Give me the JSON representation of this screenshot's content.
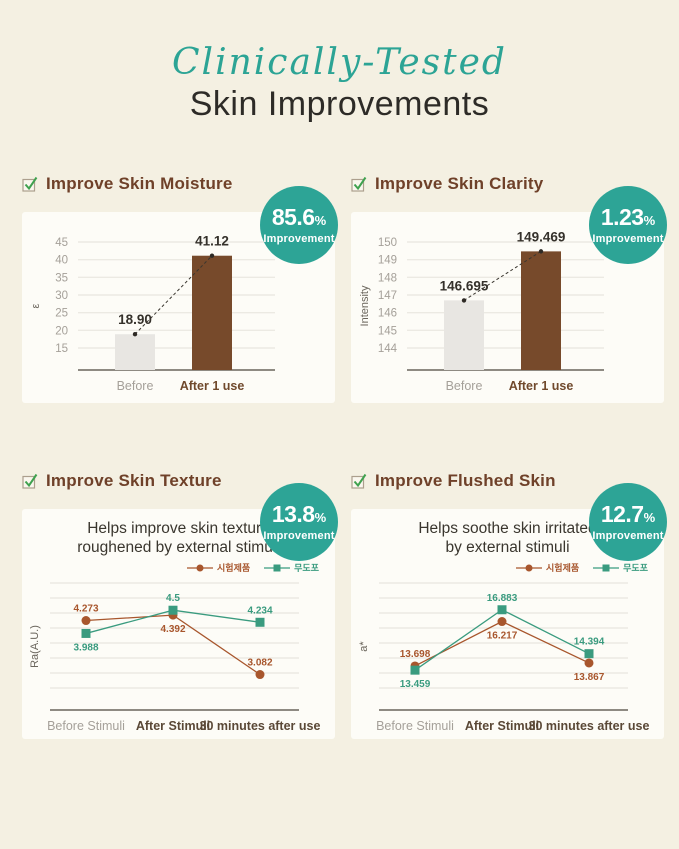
{
  "header": {
    "script_title": "Clinically-Tested",
    "main_title": "Skin Improvements"
  },
  "palette": {
    "teal_accent": "#2da496",
    "rust_series": "#a8562d",
    "teal_series": "#3a9b7f",
    "bar_before_gray": "#e8e6e2",
    "bar_after_brown": "#774a2b",
    "check_green": "#3fa14f",
    "heading_brown": "#6f4129",
    "background_cream": "#f4f0e2"
  },
  "sections": [
    {
      "heading": "Improve Skin Moisture",
      "badge_value": "85.6",
      "badge_percent": "%",
      "badge_label": "Improvement"
    },
    {
      "heading": "Improve Skin Clarity",
      "badge_value": "1.23",
      "badge_percent": "%",
      "badge_label": "Improvement"
    },
    {
      "heading": "Improve Skin Texture",
      "badge_value": "13.8",
      "badge_percent": "%",
      "badge_label": "Improvement"
    },
    {
      "heading": "Improve Flushed Skin",
      "badge_value": "12.7",
      "badge_percent": "%",
      "badge_label": "Improvement"
    }
  ],
  "chart_data": [
    {
      "type": "bar",
      "section": "Improve Skin Moisture",
      "improvement": "85.6% Improvement",
      "ylabel": "ε",
      "yticks": [
        45,
        40,
        35,
        30,
        25,
        20,
        15
      ],
      "categories": [
        "Before",
        "After 1 use"
      ],
      "values": [
        18.9,
        41.12
      ],
      "value_labels": [
        "18.90",
        "41.12"
      ],
      "bar_colors": [
        "#e8e6e2",
        "#774a2b"
      ],
      "grid": true,
      "connector": true
    },
    {
      "type": "bar",
      "section": "Improve Skin Clarity",
      "improvement": "1.23% Improvement",
      "ylabel": "Intensity",
      "yticks": [
        150,
        149,
        148,
        147,
        146,
        145,
        144
      ],
      "categories": [
        "Before",
        "After 1 use"
      ],
      "values": [
        146.695,
        149.469
      ],
      "value_labels": [
        "146.695",
        "149.469"
      ],
      "bar_colors": [
        "#e8e6e2",
        "#774a2b"
      ],
      "grid": true,
      "connector": true
    },
    {
      "type": "line",
      "section": "Improve Skin Texture",
      "improvement": "13.8% Improvement",
      "title_line1": "Helps improve skin texture",
      "title_line2": "roughened by external stimuli",
      "ylabel": "Ra(A.U.)",
      "ylim": [
        2.3,
        5.1
      ],
      "grid": true,
      "legend_position": "top-right",
      "categories": [
        "Before Stimuli",
        "After Stimuli",
        "30 minutes after use"
      ],
      "series": [
        {
          "name": "시험제품",
          "marker": "circle",
          "color": "#a8562d",
          "values": [
            4.273,
            4.392,
            3.082
          ],
          "value_labels": [
            "4.273",
            "4.392",
            "3.082"
          ],
          "label_pos": [
            "above",
            "below",
            "above"
          ]
        },
        {
          "name": "무도포",
          "marker": "square",
          "color": "#3a9b7f",
          "values": [
            3.988,
            4.5,
            4.234
          ],
          "value_labels": [
            "3.988",
            "4.5",
            "4.234"
          ],
          "label_pos": [
            "below",
            "above",
            "above"
          ]
        }
      ]
    },
    {
      "type": "line",
      "section": "Improve Flushed Skin",
      "improvement": "12.7% Improvement",
      "title_line1": "Helps soothe skin irritated",
      "title_line2": "by external stimuli",
      "ylabel": "a*",
      "ylim": [
        11.2,
        18.4
      ],
      "grid": true,
      "legend_position": "top-right",
      "categories": [
        "Before Stimuli",
        "After Stimuli",
        "30 minutes after use"
      ],
      "series": [
        {
          "name": "시험제품",
          "marker": "circle",
          "color": "#a8562d",
          "values": [
            13.698,
            16.217,
            13.867
          ],
          "value_labels": [
            "13.698",
            "16.217",
            "13.867"
          ],
          "label_pos": [
            "above",
            "below",
            "below"
          ]
        },
        {
          "name": "무도포",
          "marker": "square",
          "color": "#3a9b7f",
          "values": [
            13.459,
            16.883,
            14.394
          ],
          "value_labels": [
            "13.459",
            "16.883",
            "14.394"
          ],
          "label_pos": [
            "below",
            "above",
            "above"
          ]
        }
      ]
    }
  ]
}
